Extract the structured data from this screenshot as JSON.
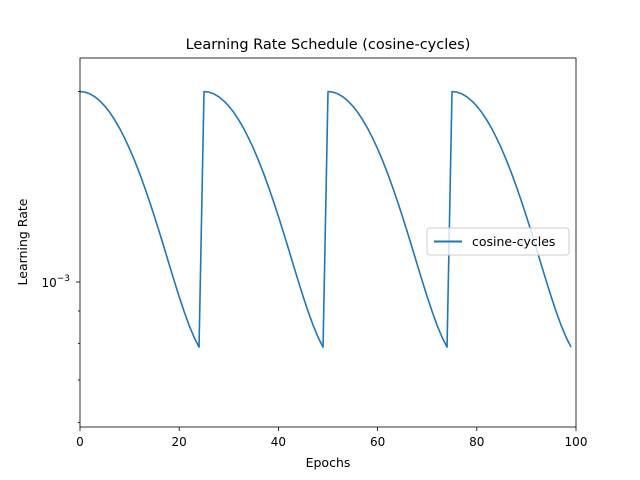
{
  "chart_data": {
    "type": "line",
    "title": "Learning Rate Schedule (cosine-cycles)",
    "xlabel": "Epochs",
    "ylabel": "Learning Rate",
    "xlim": [
      0,
      100
    ],
    "ylim": [
      0.00059,
      0.00226
    ],
    "yscale": "log",
    "x_ticks": [
      0,
      20,
      40,
      60,
      80,
      100
    ],
    "x_tick_labels": [
      "0",
      "20",
      "40",
      "60",
      "80",
      "100"
    ],
    "y_ticks": [
      0.001
    ],
    "y_tick_labels": {
      "base": "10",
      "exponent": "−3"
    },
    "grid": false,
    "legend": "center right",
    "series": [
      {
        "name": "cosine-cycles",
        "color": "#1f77b4",
        "x": [
          0,
          1,
          2,
          3,
          4,
          5,
          6,
          7,
          8,
          9,
          10,
          11,
          12,
          13,
          14,
          15,
          16,
          17,
          18,
          19,
          20,
          21,
          22,
          23,
          24,
          25,
          26,
          27,
          28,
          29,
          30,
          31,
          32,
          33,
          34,
          35,
          36,
          37,
          38,
          39,
          40,
          41,
          42,
          43,
          44,
          45,
          46,
          47,
          48,
          49,
          50,
          51,
          52,
          53,
          54,
          55,
          56,
          57,
          58,
          59,
          60,
          61,
          62,
          63,
          64,
          65,
          66,
          67,
          68,
          69,
          70,
          71,
          72,
          73,
          74,
          75,
          76,
          77,
          78,
          79,
          80,
          81,
          82,
          83,
          84,
          85,
          86,
          87,
          88,
          89,
          90,
          91,
          92,
          93,
          94,
          95,
          96,
          97,
          98,
          99
        ],
        "y": [
          0.002,
          0.001996,
          0.001983,
          0.001962,
          0.001933,
          0.001897,
          0.001854,
          0.001804,
          0.001749,
          0.001688,
          0.001624,
          0.001556,
          0.001486,
          0.001414,
          0.001342,
          0.00127,
          0.001199,
          0.001131,
          0.001065,
          0.001004,
          0.000948,
          0.000898,
          0.000854,
          0.000818,
          0.000789,
          0.002,
          0.001996,
          0.001983,
          0.001962,
          0.001933,
          0.001897,
          0.001854,
          0.001804,
          0.001749,
          0.001688,
          0.001624,
          0.001556,
          0.001486,
          0.001414,
          0.001342,
          0.00127,
          0.001199,
          0.001131,
          0.001065,
          0.001004,
          0.000948,
          0.000898,
          0.000854,
          0.000818,
          0.000789,
          0.002,
          0.001996,
          0.001983,
          0.001962,
          0.001933,
          0.001897,
          0.001854,
          0.001804,
          0.001749,
          0.001688,
          0.001624,
          0.001556,
          0.001486,
          0.001414,
          0.001342,
          0.00127,
          0.001199,
          0.001131,
          0.001065,
          0.001004,
          0.000948,
          0.000898,
          0.000854,
          0.000818,
          0.000789,
          0.002,
          0.001996,
          0.001983,
          0.001962,
          0.001933,
          0.001897,
          0.001854,
          0.001804,
          0.001749,
          0.001688,
          0.001624,
          0.001556,
          0.001486,
          0.001414,
          0.001342,
          0.00127,
          0.001199,
          0.001131,
          0.001065,
          0.001004,
          0.000948,
          0.000898,
          0.000854,
          0.000818,
          0.000789
        ]
      }
    ]
  }
}
